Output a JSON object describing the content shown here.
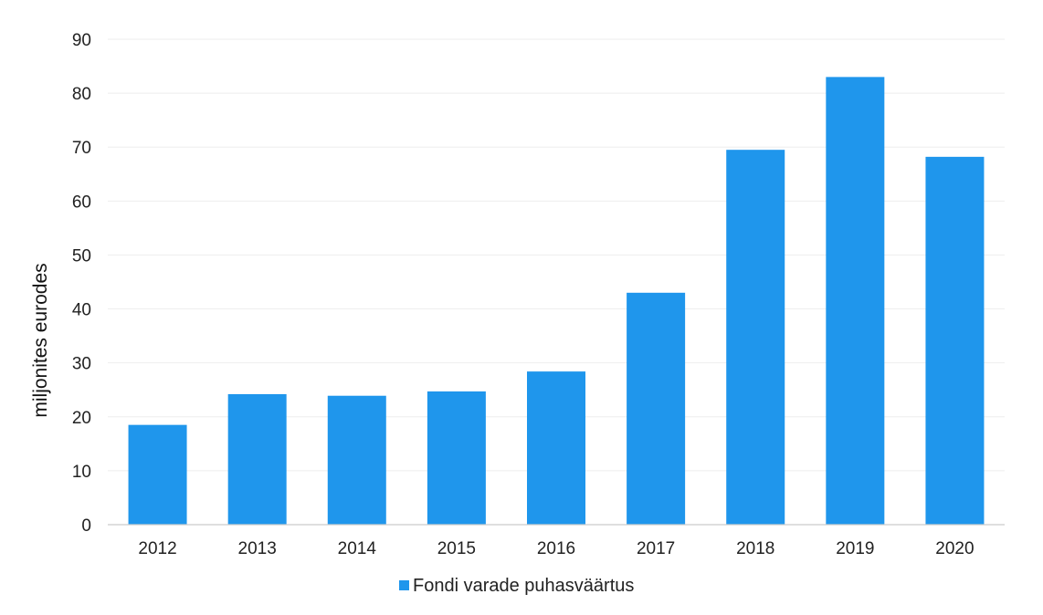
{
  "chart_data": {
    "type": "bar",
    "title": "",
    "xlabel": "",
    "ylabel": "miljonites eurodes",
    "categories": [
      "2012",
      "2013",
      "2014",
      "2015",
      "2016",
      "2017",
      "2018",
      "2019",
      "2020"
    ],
    "series": [
      {
        "name": "Fondi varade puhasväärtus",
        "values": [
          18.5,
          24.2,
          23.9,
          24.7,
          28.4,
          43.0,
          69.5,
          83.0,
          68.2
        ],
        "color": "#1f96ec"
      }
    ],
    "ylim": [
      0,
      90
    ],
    "yticks": [
      0,
      10,
      20,
      30,
      40,
      50,
      60,
      70,
      80,
      90
    ],
    "grid": true,
    "legend_position": "bottom-center"
  }
}
